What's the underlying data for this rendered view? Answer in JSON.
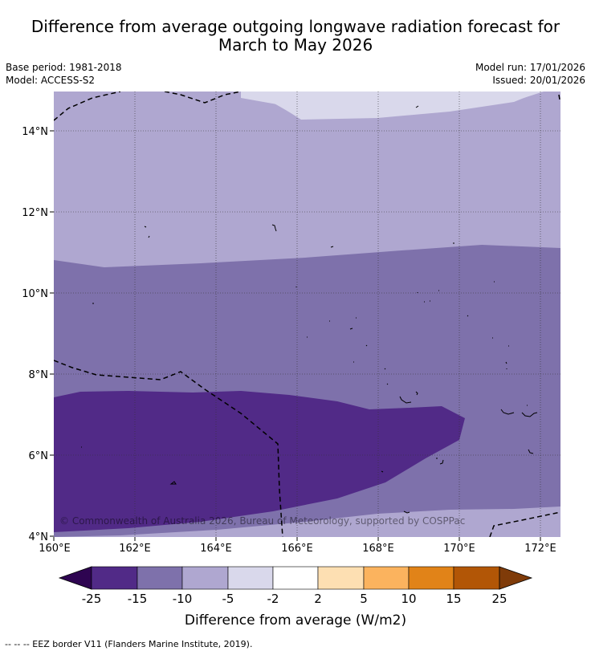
{
  "title": {
    "line1": "Difference from average outgoing longwave radiation forecast for",
    "line2": "March to May 2026"
  },
  "meta": {
    "base_period": "Base period: 1981-2018",
    "model": "Model: ACCESS-S2",
    "model_run": "Model run: 17/01/2026",
    "issued": "Issued: 20/01/2026"
  },
  "map": {
    "lon_labels": [
      "160°E",
      "162°E",
      "164°E",
      "166°E",
      "168°E",
      "170°E",
      "172°E"
    ],
    "lat_labels": [
      "14°N",
      "12°N",
      "10°N",
      "8°N",
      "6°N",
      "4°N"
    ],
    "copyright": "© Commonwealth of Australia 2026, Bureau of Meteorology, supported by COSPPac"
  },
  "colorbar": {
    "tick_labels": [
      "-25",
      "-15",
      "-10",
      "-5",
      "-2",
      "2",
      "5",
      "10",
      "15",
      "25"
    ],
    "colors": [
      "#512a87",
      "#7e71ab",
      "#afa7d0",
      "#d9d8eb",
      "#ffffff",
      "#fddfb2",
      "#fbb35e",
      "#e18318",
      "#b25606"
    ],
    "under_color": "#2e0451",
    "over_color": "#7f3b09",
    "label": "Difference from average (W/m2)"
  },
  "legend": {
    "eez": "--  --  -- EEZ border V11 (Flanders Marine Institute, 2019)."
  }
}
